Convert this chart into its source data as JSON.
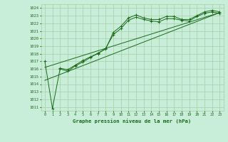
{
  "title": "Graphe pression niveau de la mer (hPa)",
  "bg_color": "#c8edd8",
  "grid_color": "#a8cca8",
  "line_color": "#1a6b1a",
  "xlim": [
    -0.5,
    23.5
  ],
  "ylim": [
    1010.5,
    1024.5
  ],
  "xticks": [
    0,
    1,
    2,
    3,
    4,
    5,
    6,
    7,
    8,
    9,
    10,
    11,
    12,
    13,
    14,
    15,
    16,
    17,
    18,
    19,
    20,
    21,
    22,
    23
  ],
  "yticks": [
    1011,
    1012,
    1013,
    1014,
    1015,
    1016,
    1017,
    1018,
    1019,
    1020,
    1021,
    1022,
    1023,
    1024
  ],
  "s1_x": [
    0,
    1,
    2,
    3,
    4,
    5,
    6,
    7,
    8,
    9,
    10,
    11,
    12,
    13,
    14,
    15,
    16,
    17,
    18,
    19,
    20,
    21,
    22,
    23
  ],
  "s1_y": [
    1017.0,
    1010.8,
    1016.0,
    1015.7,
    1016.4,
    1016.9,
    1017.5,
    1018.1,
    1018.6,
    1020.8,
    1021.6,
    1022.7,
    1023.1,
    1022.7,
    1022.5,
    1022.5,
    1022.9,
    1022.9,
    1022.5,
    1022.5,
    1023.0,
    1023.5,
    1023.7,
    1023.5
  ],
  "s2_x": [
    2,
    3,
    4,
    5,
    6,
    7,
    8,
    9,
    10,
    11,
    12,
    13,
    14,
    15,
    16,
    17,
    18,
    19,
    20,
    21,
    22,
    23
  ],
  "s2_y": [
    1016.1,
    1015.9,
    1016.5,
    1017.1,
    1017.6,
    1018.0,
    1018.7,
    1020.5,
    1021.3,
    1022.4,
    1022.8,
    1022.5,
    1022.3,
    1022.2,
    1022.6,
    1022.6,
    1022.4,
    1022.3,
    1022.9,
    1023.3,
    1023.5,
    1023.3
  ],
  "trend1_x": [
    0,
    23
  ],
  "trend1_y": [
    1016.2,
    1023.4
  ],
  "trend2_x": [
    0,
    23
  ],
  "trend2_y": [
    1014.5,
    1023.4
  ]
}
